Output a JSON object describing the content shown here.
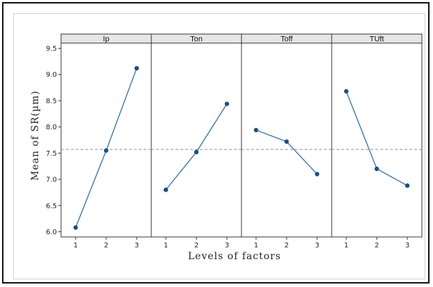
{
  "chart_data": {
    "type": "line",
    "xlabel": "Levels of factors",
    "ylabel": "Mean of SR(µm)",
    "ylim": [
      5.9,
      9.6
    ],
    "yticks": [
      "6.0",
      "6.5",
      "7.0",
      "7.5",
      "8.0",
      "8.5",
      "9.0",
      "9.5"
    ],
    "xticks": [
      "1",
      "2",
      "3"
    ],
    "reference_mean": 7.57,
    "grid": false,
    "colors": {
      "line": "#2f6fb3",
      "marker": "#1a4f8a",
      "reference": "#999999",
      "strip": "#e6e6e6"
    },
    "panels": [
      {
        "label": "Ip",
        "values": [
          6.08,
          7.55,
          9.12
        ]
      },
      {
        "label": "Ton",
        "values": [
          6.8,
          7.52,
          8.44
        ]
      },
      {
        "label": "Toff",
        "values": [
          7.94,
          7.72,
          7.1
        ]
      },
      {
        "label": "TUft",
        "values": [
          8.68,
          7.2,
          6.88
        ]
      }
    ]
  }
}
